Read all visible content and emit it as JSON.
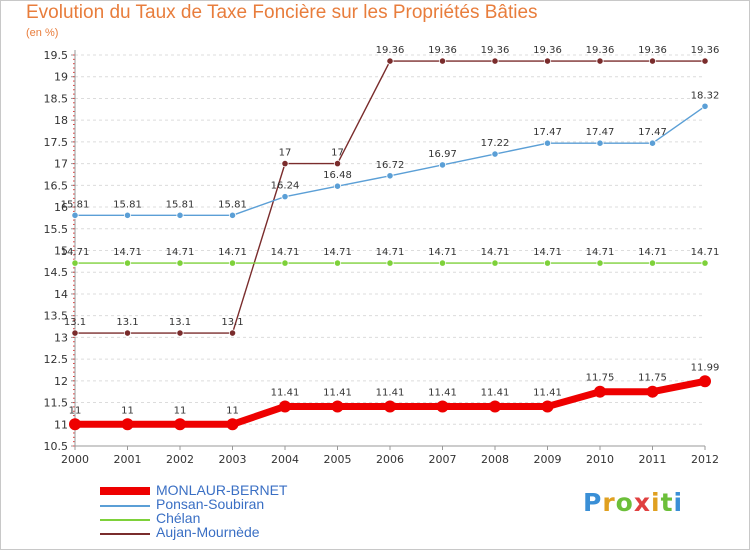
{
  "header": {
    "title": "Evolution du Taux de Taxe Foncière sur les Propriétés Bâties",
    "unit": "(en %)"
  },
  "chart_data": {
    "type": "line",
    "title": "Evolution du Taux de Taxe Foncière sur les Propriétés Bâties",
    "ylabel": "(en %)",
    "xlabel": "",
    "x": [
      "2000",
      "2001",
      "2002",
      "2003",
      "2004",
      "2005",
      "2006",
      "2007",
      "2008",
      "2009",
      "2010",
      "2011",
      "2012"
    ],
    "ylim": [
      10.5,
      19.5
    ],
    "yticks": [
      "10.5",
      "11",
      "11.5",
      "12",
      "12.5",
      "13",
      "13.5",
      "14",
      "14.5",
      "15",
      "15.5",
      "16",
      "16.5",
      "17",
      "17.5",
      "18",
      "18.5",
      "19",
      "19.5"
    ],
    "grid": "horizontal dashed",
    "legend_position": "bottom-left",
    "series": [
      {
        "name": "MONLAUR-BERNET",
        "color": "#ee0000",
        "values": [
          11,
          11,
          11,
          11,
          11.41,
          11.41,
          11.41,
          11.41,
          11.41,
          11.41,
          11.75,
          11.75,
          11.99
        ],
        "labels": [
          "11",
          "11",
          "11",
          "11",
          "11.41",
          "11.41",
          "11.41",
          "11.41",
          "11.41",
          "11.41",
          "11.75",
          "11.75",
          "11.99"
        ]
      },
      {
        "name": "Ponsan-Soubiran",
        "color": "#5b9fd6",
        "values": [
          15.81,
          15.81,
          15.81,
          15.81,
          16.24,
          16.48,
          16.72,
          16.97,
          17.22,
          17.47,
          17.47,
          17.47,
          18.32
        ],
        "labels": [
          "15.81",
          "15.81",
          "15.81",
          "15.81",
          "16.24",
          "16.48",
          "16.72",
          "16.97",
          "17.22",
          "17.47",
          "17.47",
          "17.47",
          "18.32"
        ]
      },
      {
        "name": "Chélan",
        "color": "#7ed13a",
        "values": [
          14.71,
          14.71,
          14.71,
          14.71,
          14.71,
          14.71,
          14.71,
          14.71,
          14.71,
          14.71,
          14.71,
          14.71,
          14.71
        ],
        "labels": [
          "14.71",
          "14.71",
          "14.71",
          "14.71",
          "14.71",
          "14.71",
          "14.71",
          "14.71",
          "14.71",
          "14.71",
          "14.71",
          "14.71",
          "14.71"
        ]
      },
      {
        "name": "Aujan-Mournède",
        "color": "#7a2c2c",
        "values": [
          13.1,
          13.1,
          13.1,
          13.1,
          17,
          17,
          19.36,
          19.36,
          19.36,
          19.36,
          19.36,
          19.36,
          19.36
        ],
        "labels": [
          "13.1",
          "13.1",
          "13.1",
          "13.1",
          "17",
          "17",
          "19.36",
          "19.36",
          "19.36",
          "19.36",
          "19.36",
          "19.36",
          "19.36"
        ]
      }
    ]
  },
  "logo": {
    "letters": [
      "P",
      "r",
      "o",
      "x",
      "i",
      "t",
      "i"
    ],
    "colors": [
      "#3a8fd6",
      "#e0a020",
      "#6cbf3a",
      "#e04040",
      "#e0a020",
      "#6cbf3a",
      "#3a8fd6"
    ]
  }
}
